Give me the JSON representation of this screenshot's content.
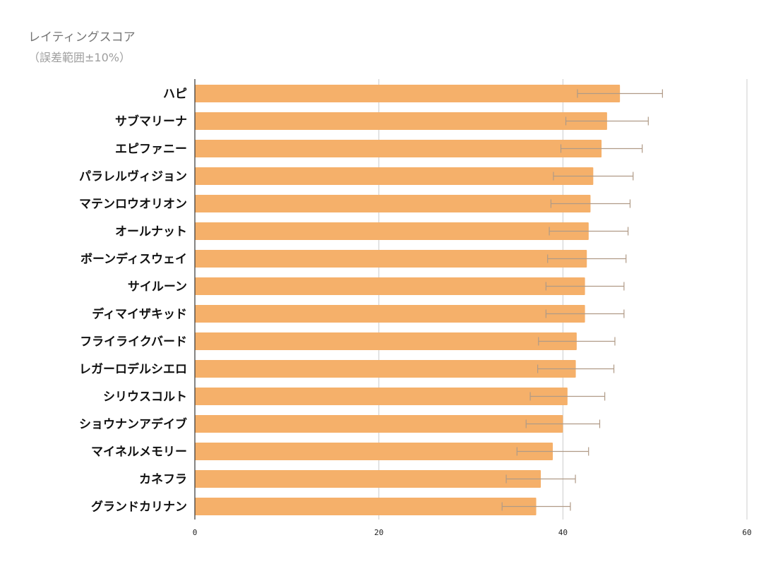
{
  "chart_data": {
    "type": "bar",
    "orientation": "horizontal",
    "title": "レイティングスコア",
    "subtitle": "（誤差範囲±10%）",
    "categories": [
      "ハピ",
      "サブマリーナ",
      "エピファニー",
      "パラレルヴィジョン",
      "マテンロウオリオン",
      "オールナット",
      "ボーンディスウェイ",
      "サイルーン",
      "ディマイザキッド",
      "フライライクバード",
      "レガーロデルシエロ",
      "シリウスコルト",
      "ショウナンアデイブ",
      "マイネルメモリー",
      "カネフラ",
      "グランドカリナン"
    ],
    "values": [
      46.2,
      44.8,
      44.2,
      43.3,
      43.0,
      42.8,
      42.6,
      42.4,
      42.4,
      41.5,
      41.4,
      40.5,
      40.0,
      38.9,
      37.6,
      37.1
    ],
    "error_percent": 10,
    "xlim": [
      0,
      60
    ],
    "xticks": [
      0,
      20,
      40,
      60
    ],
    "xlabel": "",
    "ylabel": "",
    "grid": true,
    "legend": "none",
    "colors": {
      "bar": "#f5b06a",
      "error_bar": "#b09a86",
      "grid": "#cccccc",
      "axis": "#333333"
    }
  }
}
